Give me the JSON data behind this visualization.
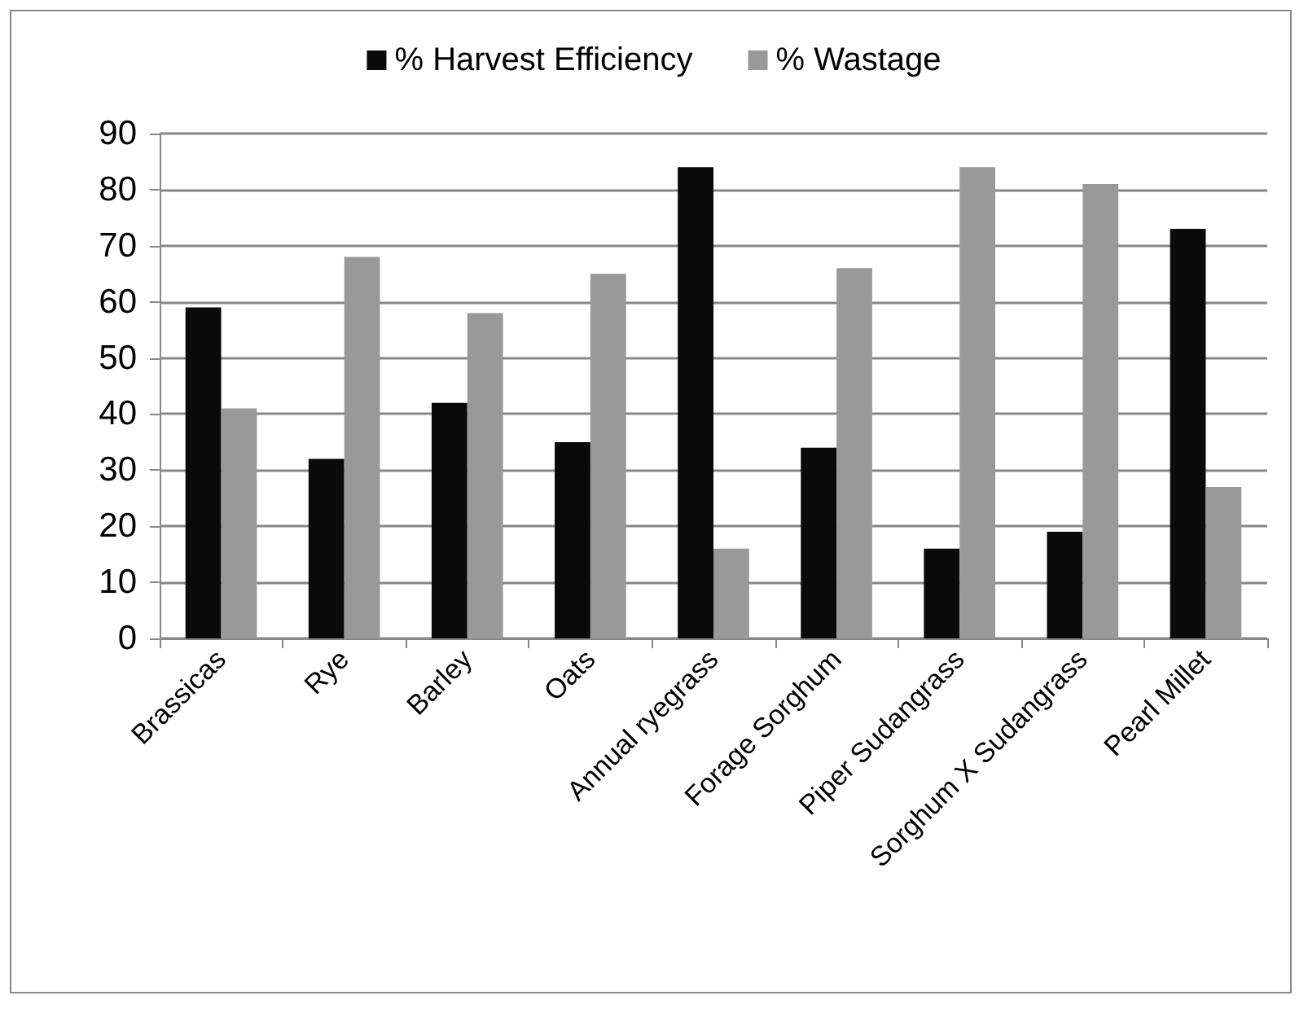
{
  "chart_data": {
    "type": "bar",
    "categories": [
      "Brassicas",
      "Rye",
      "Barley",
      "Oats",
      "Annual ryegrass",
      "Forage Sorghum",
      "Piper Sudangrass",
      "Sorghum X Sudangrass",
      "Pearl Millet"
    ],
    "series": [
      {
        "name": "% Harvest Efficiency",
        "color": "#0a0a0a",
        "values": [
          59,
          32,
          42,
          35,
          84,
          34,
          16,
          19,
          73
        ]
      },
      {
        "name": "% Wastage",
        "color": "#999999",
        "values": [
          41,
          68,
          58,
          65,
          16,
          66,
          84,
          81,
          27
        ]
      }
    ],
    "ylim": [
      0,
      90
    ],
    "yticks": [
      0,
      10,
      20,
      30,
      40,
      50,
      60,
      70,
      80,
      90
    ],
    "grid": "y",
    "legend": "top"
  }
}
